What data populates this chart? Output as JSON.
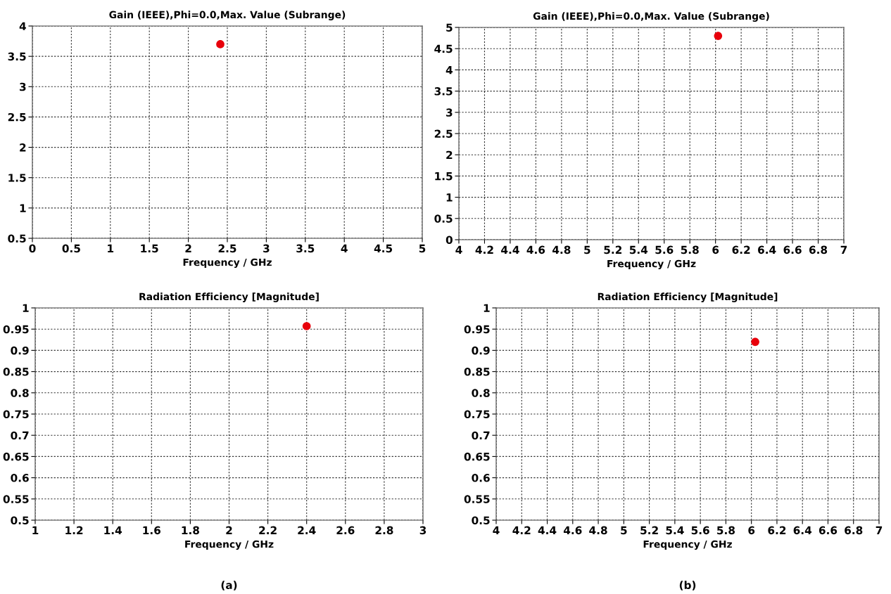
{
  "chart_data": [
    {
      "type": "scatter",
      "title": "Gain (IEEE),Phi=0.0,Max. Value (Subrange)",
      "xlabel": "Frequency / GHz",
      "x": [
        2.41
      ],
      "values": [
        3.7
      ],
      "color": "#e8000b",
      "marker": "circle",
      "xlim": [
        0,
        5
      ],
      "xticks": [
        0,
        0.5,
        1,
        1.5,
        2,
        2.5,
        3,
        3.5,
        4,
        4.5,
        5
      ],
      "ylim": [
        0.5,
        4
      ],
      "yticks": [
        0.5,
        1,
        1.5,
        2,
        2.5,
        3,
        3.5,
        4
      ],
      "grid": true
    },
    {
      "type": "scatter",
      "title": "Gain (IEEE),Phi=0.0,Max. Value (Subrange)",
      "xlabel": "Frequency / GHz",
      "x": [
        6.02
      ],
      "values": [
        4.8
      ],
      "color": "#e8000b",
      "marker": "circle",
      "xlim": [
        4,
        7
      ],
      "xticks": [
        4,
        4.2,
        4.4,
        4.6,
        4.8,
        5,
        5.2,
        5.4,
        5.6,
        5.8,
        6,
        6.2,
        6.4,
        6.6,
        6.8,
        7
      ],
      "ylim": [
        0,
        5
      ],
      "yticks": [
        0,
        0.5,
        1,
        1.5,
        2,
        2.5,
        3,
        3.5,
        4,
        4.5,
        5
      ],
      "grid": true
    },
    {
      "type": "scatter",
      "title": "Radiation Efficiency [Magnitude]",
      "xlabel": "Frequency / GHz",
      "x": [
        2.4
      ],
      "values": [
        0.957
      ],
      "color": "#e8000b",
      "marker": "circle",
      "xlim": [
        1,
        3
      ],
      "xticks": [
        1,
        1.2,
        1.4,
        1.6,
        1.8,
        2,
        2.2,
        2.4,
        2.6,
        2.8,
        3
      ],
      "ylim": [
        0.5,
        1
      ],
      "yticks": [
        0.5,
        0.55,
        0.6,
        0.65,
        0.7,
        0.75,
        0.8,
        0.85,
        0.9,
        0.95,
        1
      ],
      "grid": true,
      "annotations": [
        "(a)"
      ]
    },
    {
      "type": "scatter",
      "title": "Radiation Efficiency [Magnitude]",
      "xlabel": "Frequency / GHz",
      "x": [
        6.03
      ],
      "values": [
        0.92
      ],
      "color": "#e8000b",
      "marker": "circle",
      "xlim": [
        4,
        7
      ],
      "xticks": [
        4,
        4.2,
        4.4,
        4.6,
        4.8,
        5,
        5.2,
        5.4,
        5.6,
        5.8,
        6,
        6.2,
        6.4,
        6.6,
        6.8,
        7
      ],
      "ylim": [
        0.5,
        1
      ],
      "yticks": [
        0.5,
        0.55,
        0.6,
        0.65,
        0.7,
        0.75,
        0.8,
        0.85,
        0.9,
        0.95,
        1
      ],
      "grid": true,
      "annotations": [
        "(b)"
      ]
    }
  ]
}
